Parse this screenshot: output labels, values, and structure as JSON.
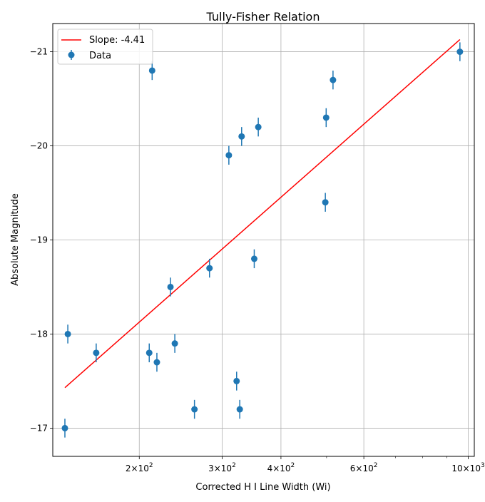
{
  "chart_data": {
    "type": "scatter",
    "title": "Tully-Fisher Relation",
    "xlabel": "Corrected H I Line Width (Wi)",
    "ylabel": "Absolute Magnitude",
    "xscale": "log",
    "xlim": [
      131,
      1030
    ],
    "ylim": [
      -16.7,
      -21.3
    ],
    "y_inverted": true,
    "grid": true,
    "legend_position": "top-left",
    "x_ticks": [
      {
        "value": 200,
        "base": "2",
        "exponent": "2"
      },
      {
        "value": 300,
        "base": "3",
        "exponent": "2"
      },
      {
        "value": 400,
        "base": "4",
        "exponent": "2"
      },
      {
        "value": 600,
        "base": "6",
        "exponent": "2"
      },
      {
        "value": 1000,
        "base": "10",
        "exponent": "3"
      }
    ],
    "x_minor_ticks": [
      500,
      700,
      800,
      900
    ],
    "y_ticks": [
      {
        "value": -21,
        "label": "−21"
      },
      {
        "value": -20,
        "label": "−20"
      },
      {
        "value": -19,
        "label": "−19"
      },
      {
        "value": -18,
        "label": "−18"
      },
      {
        "value": -17,
        "label": "−17"
      }
    ],
    "series": [
      {
        "name": "Data",
        "kind": "errorbar",
        "color": "#1f77b4",
        "yerr": 0.1,
        "points": [
          {
            "x": 139,
            "y": -17.0
          },
          {
            "x": 141,
            "y": -18.0
          },
          {
            "x": 162,
            "y": -17.8
          },
          {
            "x": 210,
            "y": -17.8
          },
          {
            "x": 213,
            "y": -20.8
          },
          {
            "x": 218,
            "y": -17.7
          },
          {
            "x": 233,
            "y": -18.5
          },
          {
            "x": 238,
            "y": -17.9
          },
          {
            "x": 262,
            "y": -17.2
          },
          {
            "x": 282,
            "y": -18.7
          },
          {
            "x": 310,
            "y": -19.9
          },
          {
            "x": 322,
            "y": -17.5
          },
          {
            "x": 327,
            "y": -17.2
          },
          {
            "x": 330,
            "y": -20.1
          },
          {
            "x": 351,
            "y": -18.8
          },
          {
            "x": 358,
            "y": -20.2
          },
          {
            "x": 497,
            "y": -19.4
          },
          {
            "x": 499,
            "y": -20.3
          },
          {
            "x": 516,
            "y": -20.7
          },
          {
            "x": 960,
            "y": -21.0
          }
        ]
      },
      {
        "name": "Slope: -4.41",
        "kind": "line",
        "color": "#ff0000",
        "points": [
          {
            "x": 139,
            "y": -17.43
          },
          {
            "x": 960,
            "y": -21.13
          }
        ]
      }
    ]
  }
}
